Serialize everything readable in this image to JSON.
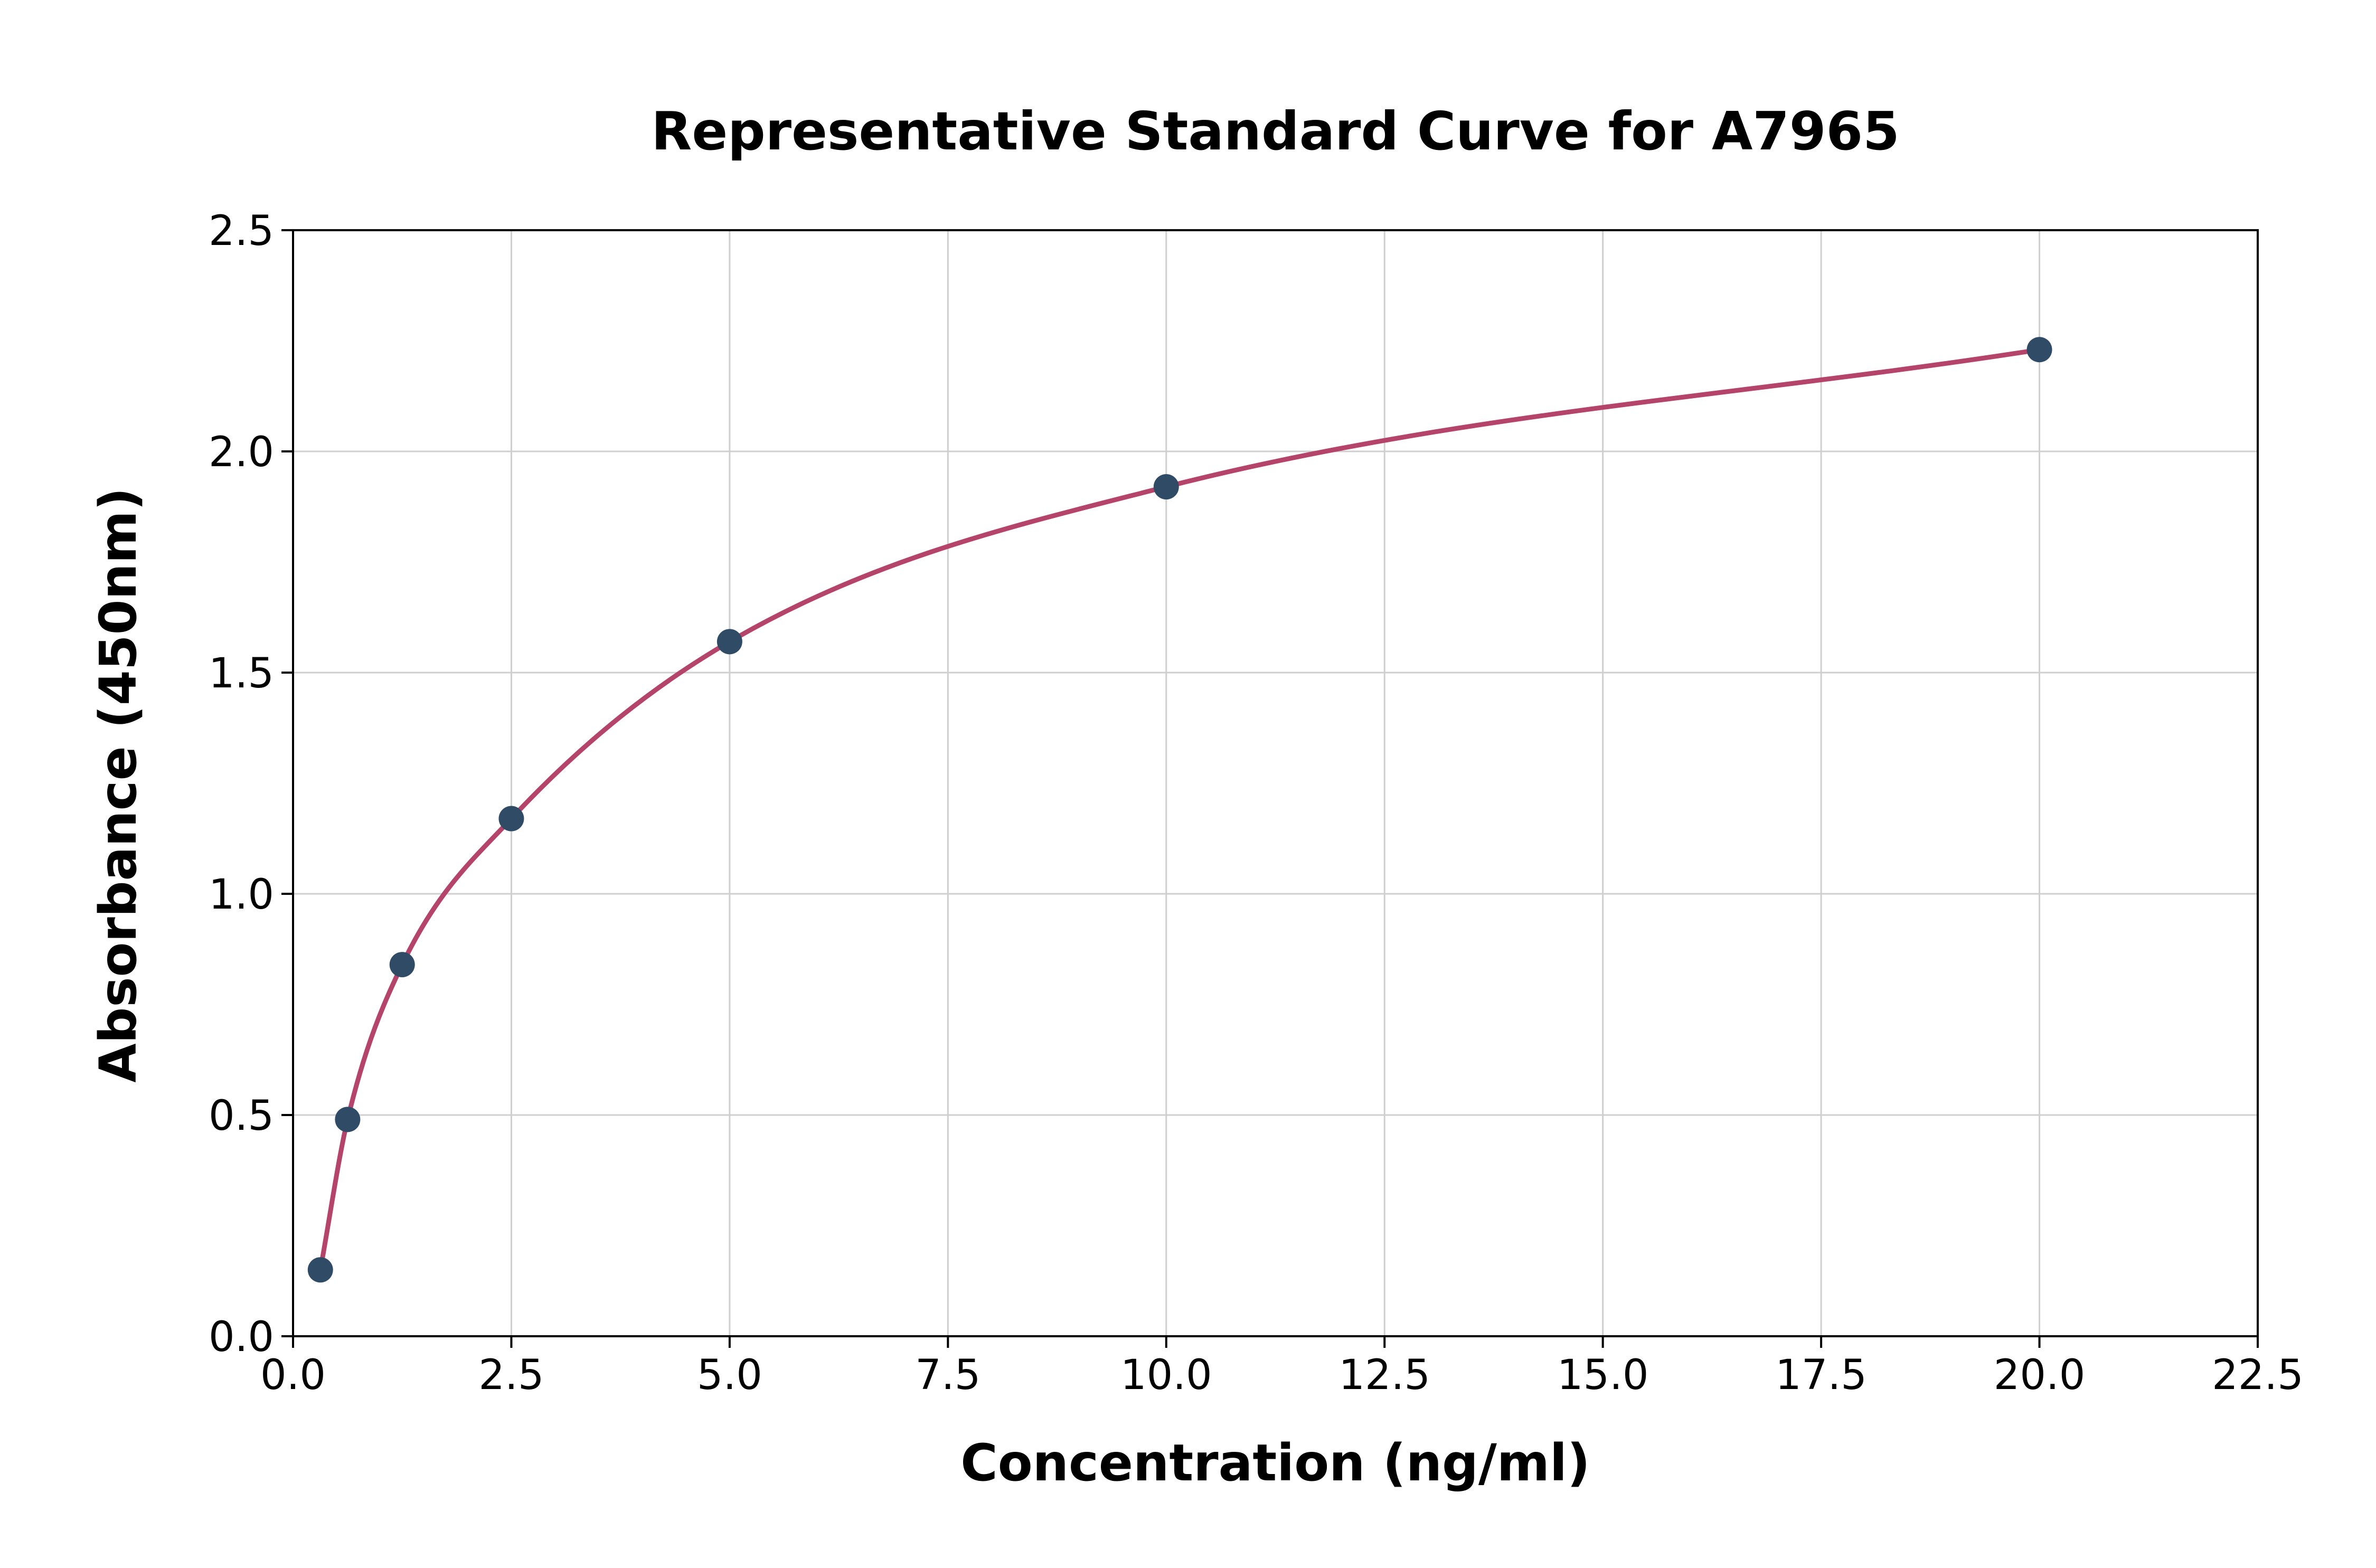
{
  "page": {
    "background": "#ffffff"
  },
  "chart_data": {
    "type": "scatter",
    "title": "Representative Standard Curve for A7965",
    "xlabel": "Concentration (ng/ml)",
    "ylabel": "Absorbance (450nm)",
    "xlim": [
      0,
      22.5
    ],
    "ylim": [
      0,
      2.5
    ],
    "x_ticks": [
      0.0,
      2.5,
      5.0,
      7.5,
      10.0,
      12.5,
      15.0,
      17.5,
      20.0,
      22.5
    ],
    "x_tick_labels": [
      "0.0",
      "2.5",
      "5.0",
      "7.5",
      "10.0",
      "12.5",
      "15.0",
      "17.5",
      "20.0",
      "22.5"
    ],
    "y_ticks": [
      0.0,
      0.5,
      1.0,
      1.5,
      2.0,
      2.5
    ],
    "y_tick_labels": [
      "0.0",
      "0.5",
      "1.0",
      "1.5",
      "2.0",
      "2.5"
    ],
    "grid": true,
    "legend_position": "none",
    "series": [
      {
        "name": "standard-points",
        "type": "scatter",
        "x": [
          0.313,
          0.625,
          1.25,
          2.5,
          5.0,
          10.0,
          20.0
        ],
        "y": [
          0.15,
          0.49,
          0.84,
          1.17,
          1.57,
          1.92,
          2.23
        ]
      },
      {
        "name": "fit-curve",
        "type": "line",
        "x": [
          0.313,
          0.625,
          1.25,
          2.5,
          5.0,
          10.0,
          20.0
        ],
        "y": [
          0.15,
          0.49,
          0.84,
          1.17,
          1.57,
          1.92,
          2.23
        ]
      }
    ],
    "colors": {
      "curve": "#b5446b",
      "points": "#2f4b66",
      "grid": "#cfcfcf",
      "spine": "#000000",
      "background": "#ffffff"
    }
  }
}
